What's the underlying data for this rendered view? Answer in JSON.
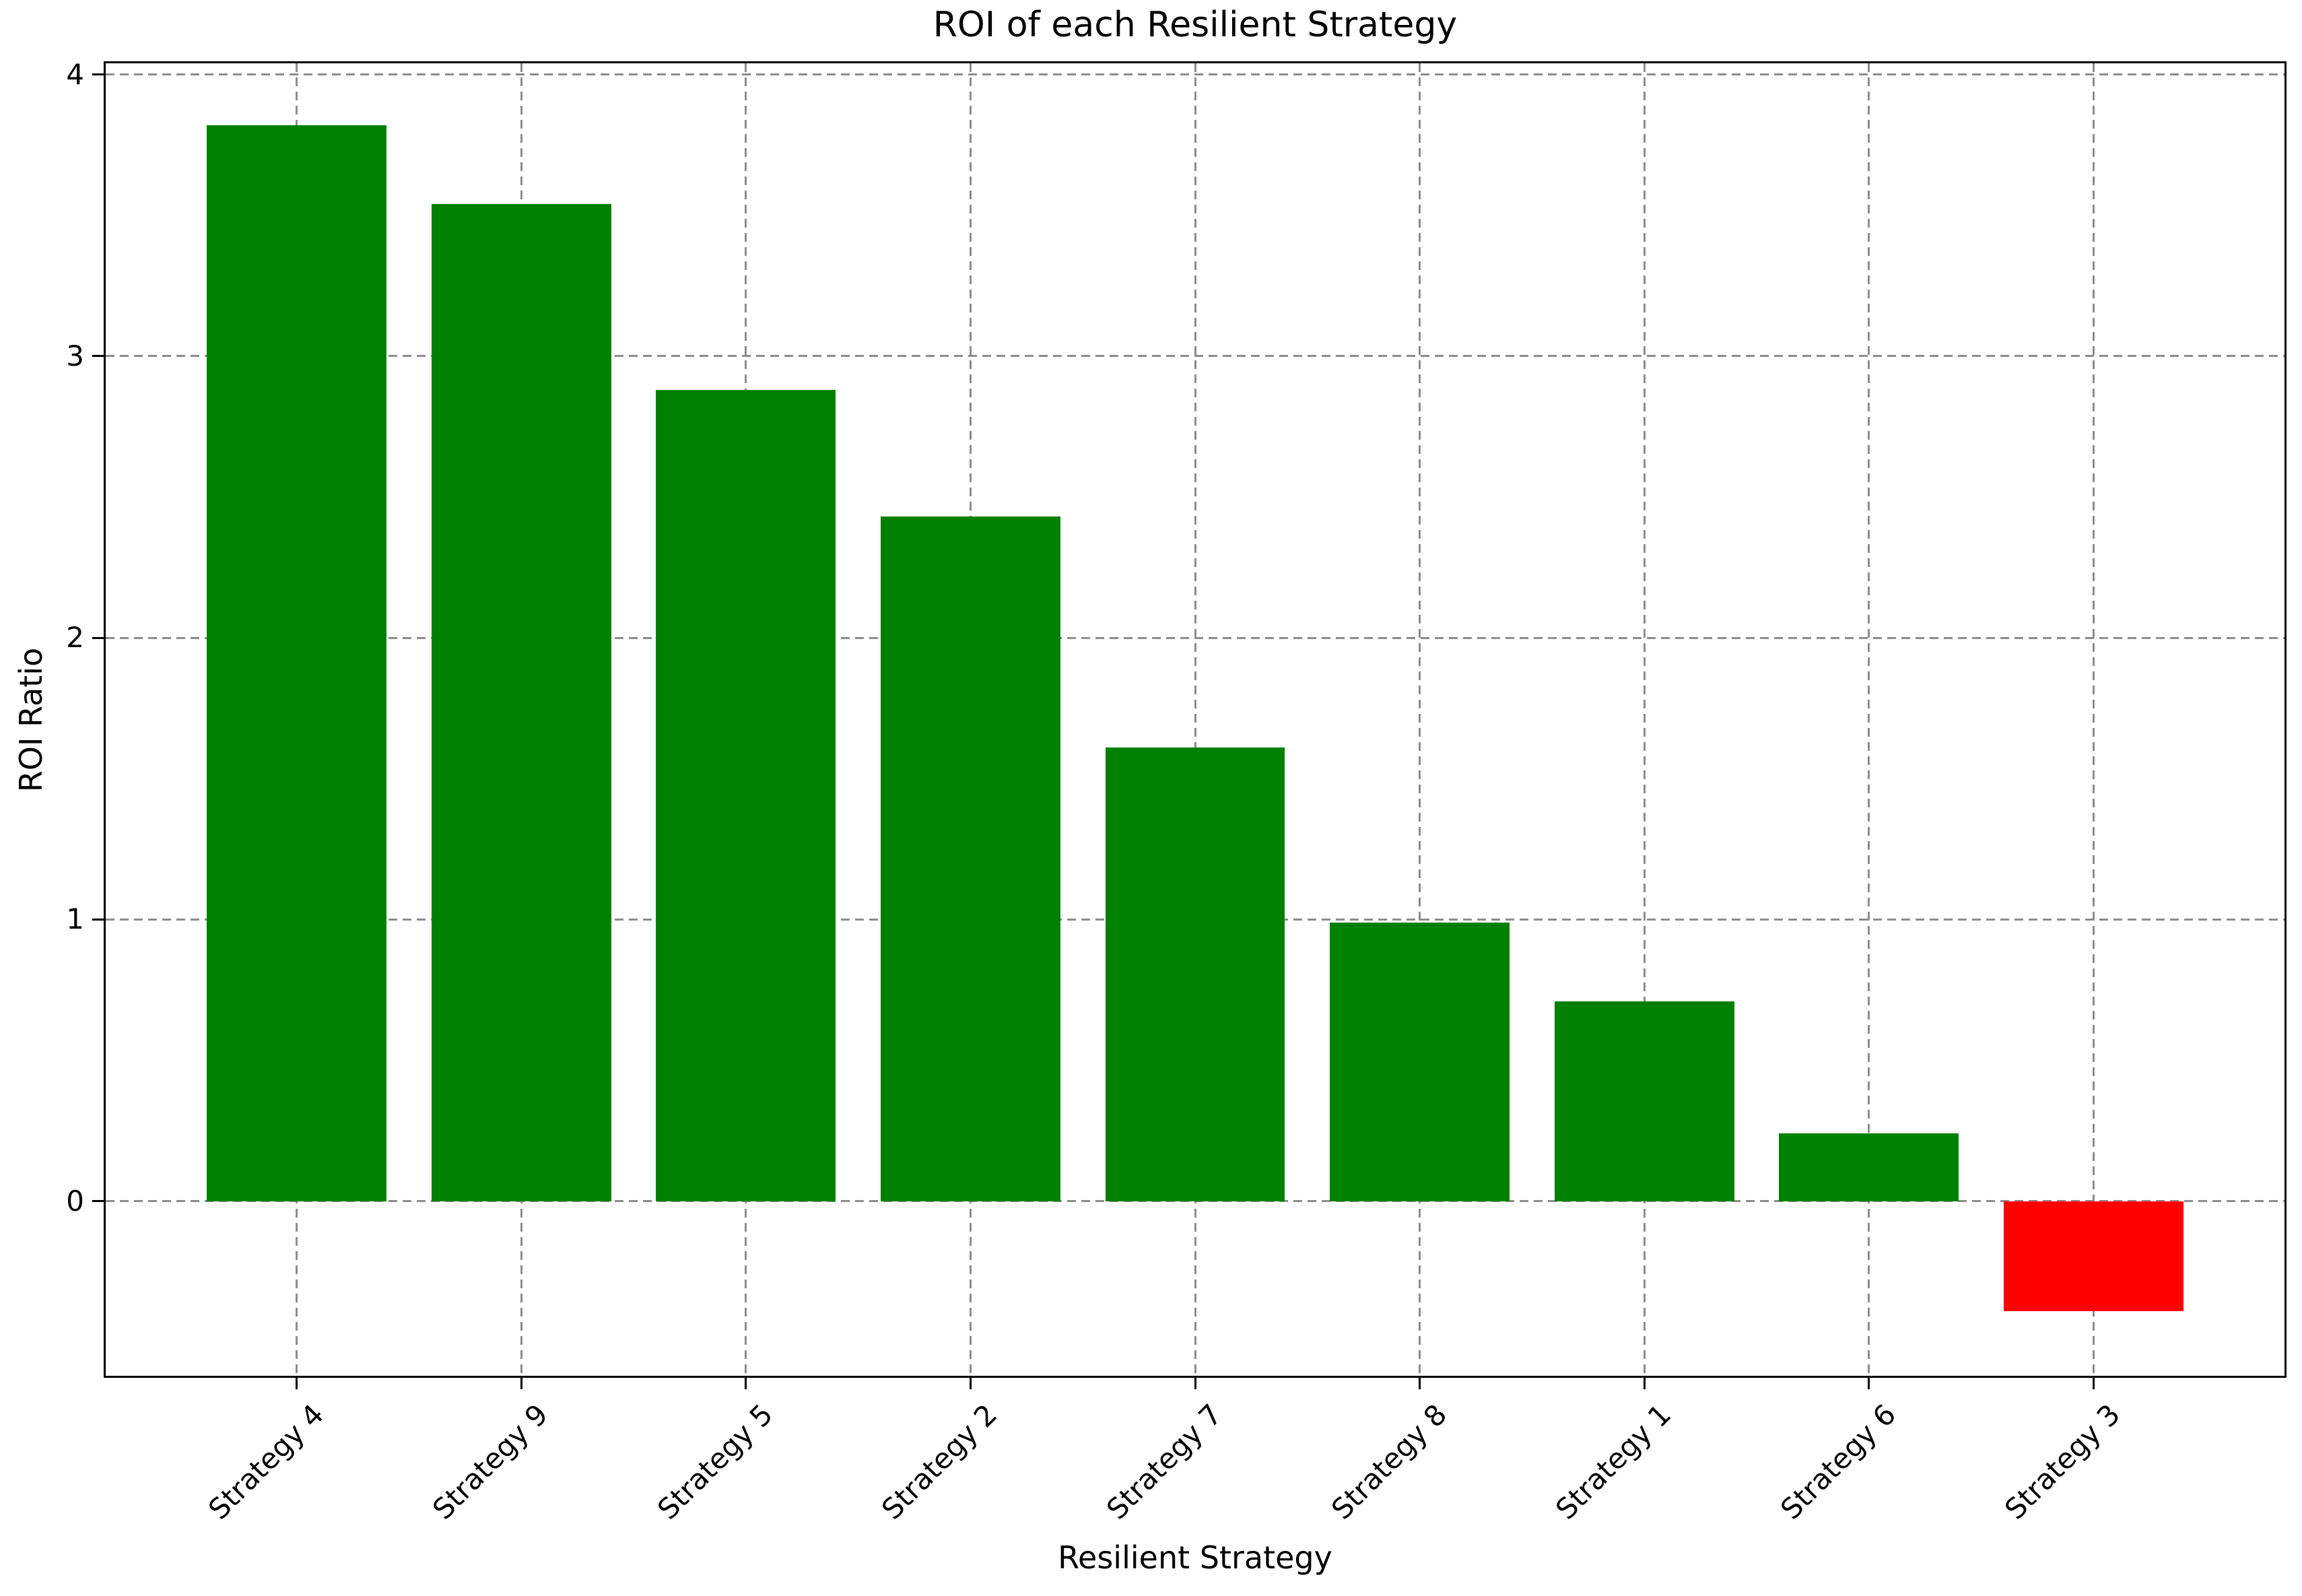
{
  "chart_data": {
    "type": "bar",
    "title": "ROI of each Resilient Strategy",
    "xlabel": "Resilient Strategy",
    "ylabel": "ROI Ratio",
    "categories": [
      "Strategy 4",
      "Strategy 9",
      "Strategy 5",
      "Strategy 2",
      "Strategy 7",
      "Strategy 8",
      "Strategy 1",
      "Strategy 6",
      "Strategy 3"
    ],
    "values": [
      3.82,
      3.54,
      2.88,
      2.43,
      1.61,
      0.99,
      0.71,
      0.24,
      -0.39
    ],
    "yticks": [
      0,
      1,
      2,
      3,
      4
    ],
    "ylim": [
      -0.62,
      4.04
    ],
    "xlim": [
      -0.85,
      8.85
    ],
    "bar_width": 0.8,
    "grid": true,
    "legend": false,
    "colors": {
      "positive_bar": "#008000",
      "negative_bar": "#ff0000",
      "grid": "#8c8c8c",
      "text": "#000000",
      "background": "#ffffff"
    }
  }
}
